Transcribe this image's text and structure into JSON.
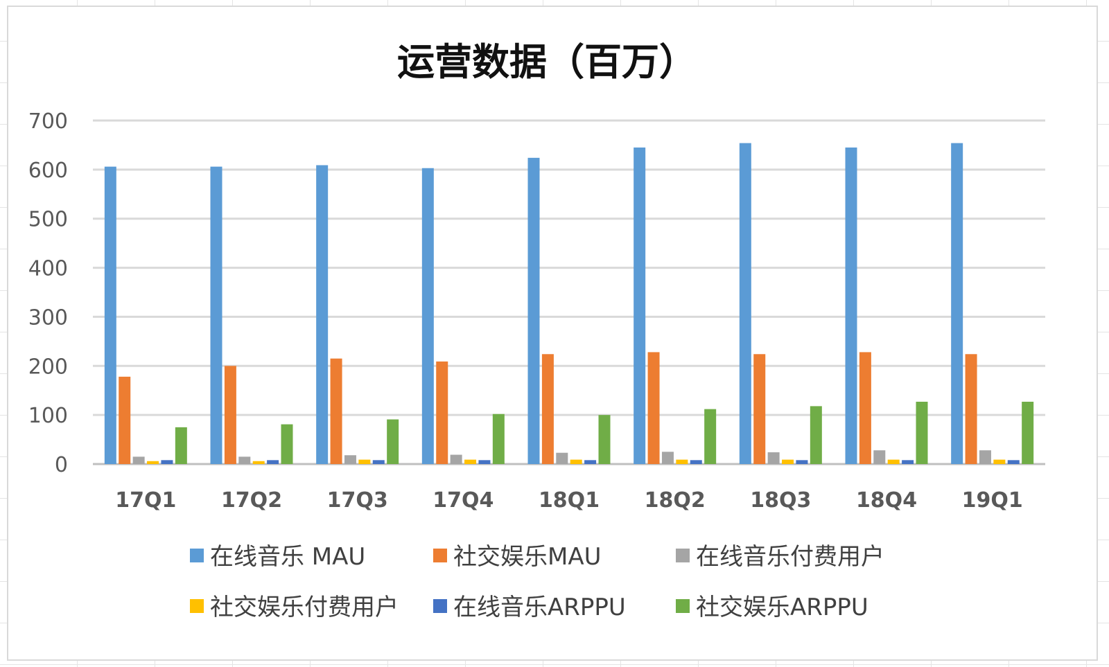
{
  "chart_data": {
    "type": "bar",
    "title": "运营数据（百万）",
    "xlabel": "",
    "ylabel": "",
    "ylim": [
      0,
      700
    ],
    "yticks": [
      0,
      100,
      200,
      300,
      400,
      500,
      600,
      700
    ],
    "grid": true,
    "legend_position": "bottom",
    "categories": [
      "17Q1",
      "17Q2",
      "17Q3",
      "17Q4",
      "18Q1",
      "18Q2",
      "18Q3",
      "18Q4",
      "19Q1"
    ],
    "series": [
      {
        "name": "在线音乐 MAU",
        "color": "#5B9BD5",
        "values": [
          606,
          606,
          609,
          603,
          624,
          645,
          654,
          645,
          654
        ]
      },
      {
        "name": "社交娱乐MAU",
        "color": "#ED7D31",
        "values": [
          178,
          200,
          215,
          209,
          224,
          228,
          224,
          228,
          224
        ]
      },
      {
        "name": "在线音乐付费用户",
        "color": "#A5A5A5",
        "values": [
          15,
          15,
          18,
          19,
          23,
          25,
          24,
          28,
          28
        ]
      },
      {
        "name": "社交娱乐付费用户",
        "color": "#FFC000",
        "values": [
          6,
          6,
          9,
          9,
          9,
          9,
          9,
          9,
          9
        ]
      },
      {
        "name": "在线音乐ARPPU",
        "color": "#4472C4",
        "values": [
          8,
          8,
          8,
          8,
          8,
          8,
          8,
          8,
          8
        ]
      },
      {
        "name": "社交娱乐ARPPU",
        "color": "#70AD47",
        "values": [
          75,
          81,
          91,
          102,
          100,
          112,
          118,
          127,
          127
        ]
      }
    ]
  }
}
